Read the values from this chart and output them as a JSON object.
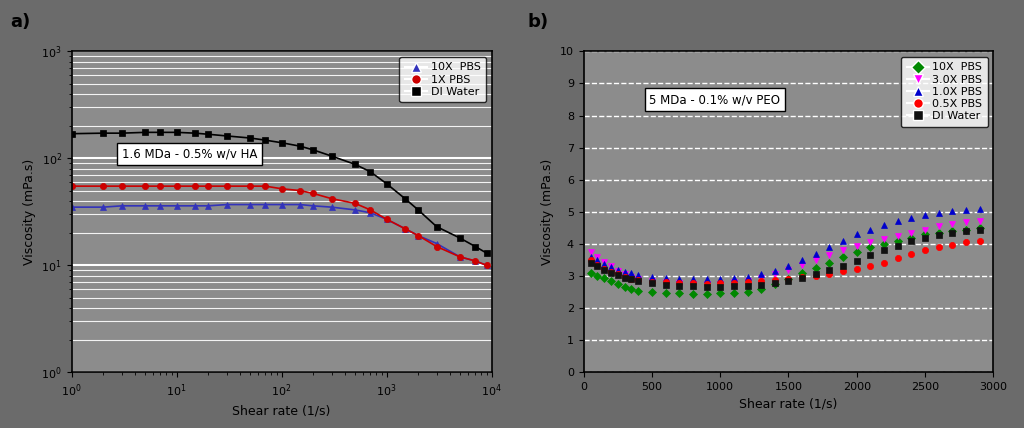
{
  "fig_bg": "#6b6b6b",
  "plot_bg": "#8c8c8c",
  "fig_size": [
    10.24,
    4.28
  ],
  "dpi": 100,
  "panel_a": {
    "label": "a)",
    "xlabel": "Shear rate (1/s)",
    "ylabel": "Viscosity (mPa.s)",
    "xlim": [
      1,
      10000
    ],
    "ylim": [
      1,
      1000
    ],
    "annotation": "1.6 MDa - 0.5% w/v HA",
    "series": [
      {
        "label": "10X  PBS",
        "color": "#3333bb",
        "marker": "^",
        "x": [
          1,
          2,
          3,
          5,
          7,
          10,
          15,
          20,
          30,
          50,
          70,
          100,
          150,
          200,
          300,
          500,
          700,
          1000,
          1500,
          2000,
          3000,
          5000,
          7000,
          9000
        ],
        "y": [
          35,
          35,
          36,
          36,
          36,
          36,
          36,
          36,
          37,
          37,
          37,
          37,
          37,
          36,
          35,
          33,
          31,
          27,
          22,
          19,
          16,
          12,
          11,
          10
        ]
      },
      {
        "label": "1X PBS",
        "color": "#cc0000",
        "marker": "o",
        "x": [
          1,
          2,
          3,
          5,
          7,
          10,
          15,
          20,
          30,
          50,
          70,
          100,
          150,
          200,
          300,
          500,
          700,
          1000,
          1500,
          2000,
          3000,
          5000,
          7000,
          9000
        ],
        "y": [
          55,
          55,
          55,
          55,
          55,
          55,
          55,
          55,
          55,
          55,
          55,
          52,
          50,
          47,
          42,
          38,
          33,
          27,
          22,
          19,
          15,
          12,
          11,
          10
        ]
      },
      {
        "label": "DI Water",
        "color": "#000000",
        "marker": "s",
        "x": [
          1,
          2,
          3,
          5,
          7,
          10,
          15,
          20,
          30,
          50,
          70,
          100,
          150,
          200,
          300,
          500,
          700,
          1000,
          1500,
          2000,
          3000,
          5000,
          7000,
          9000
        ],
        "y": [
          170,
          172,
          172,
          175,
          175,
          175,
          172,
          168,
          162,
          155,
          148,
          140,
          130,
          120,
          105,
          88,
          75,
          58,
          42,
          33,
          23,
          18,
          15,
          13
        ]
      }
    ]
  },
  "panel_b": {
    "label": "b)",
    "xlabel": "Shear rate (1/s)",
    "ylabel": "Viscosity (mPa.s)",
    "xlim": [
      0,
      3000
    ],
    "ylim": [
      0,
      10
    ],
    "yticks": [
      0,
      1,
      2,
      3,
      4,
      5,
      6,
      7,
      8,
      9,
      10
    ],
    "annotation": "5 MDa - 0.1% w/v PEO",
    "series": [
      {
        "label": "10X  PBS",
        "color": "#008800",
        "marker": "D",
        "x": [
          50,
          100,
          150,
          200,
          250,
          300,
          350,
          400,
          500,
          600,
          700,
          800,
          900,
          1000,
          1100,
          1200,
          1300,
          1400,
          1500,
          1600,
          1700,
          1800,
          1900,
          2000,
          2100,
          2200,
          2300,
          2400,
          2500,
          2600,
          2700,
          2800,
          2900
        ],
        "y": [
          3.1,
          3.0,
          2.95,
          2.85,
          2.75,
          2.65,
          2.6,
          2.55,
          2.5,
          2.48,
          2.46,
          2.45,
          2.45,
          2.46,
          2.48,
          2.5,
          2.6,
          2.75,
          2.9,
          3.1,
          3.25,
          3.4,
          3.6,
          3.75,
          3.9,
          4.0,
          4.1,
          4.2,
          4.3,
          4.35,
          4.4,
          4.45,
          4.5
        ]
      },
      {
        "label": "3.0X PBS",
        "color": "#ff00ff",
        "marker": "v",
        "x": [
          50,
          100,
          150,
          200,
          250,
          300,
          350,
          400,
          500,
          600,
          700,
          800,
          900,
          1000,
          1100,
          1200,
          1300,
          1400,
          1500,
          1600,
          1700,
          1800,
          1900,
          2000,
          2100,
          2200,
          2300,
          2400,
          2500,
          2600,
          2700,
          2800,
          2900
        ],
        "y": [
          3.75,
          3.6,
          3.45,
          3.3,
          3.15,
          3.05,
          2.98,
          2.92,
          2.85,
          2.8,
          2.77,
          2.75,
          2.75,
          2.76,
          2.8,
          2.85,
          2.95,
          3.05,
          3.2,
          3.35,
          3.5,
          3.65,
          3.8,
          3.95,
          4.05,
          4.15,
          4.25,
          4.35,
          4.45,
          4.55,
          4.62,
          4.68,
          4.72
        ]
      },
      {
        "label": "1.0X PBS",
        "color": "#0000cc",
        "marker": "^",
        "x": [
          50,
          100,
          150,
          200,
          250,
          300,
          350,
          400,
          500,
          600,
          700,
          800,
          900,
          1000,
          1100,
          1200,
          1300,
          1400,
          1500,
          1600,
          1700,
          1800,
          1900,
          2000,
          2100,
          2200,
          2300,
          2400,
          2500,
          2600,
          2700,
          2800,
          2900
        ],
        "y": [
          3.6,
          3.5,
          3.38,
          3.28,
          3.2,
          3.12,
          3.08,
          3.03,
          2.97,
          2.93,
          2.91,
          2.9,
          2.9,
          2.91,
          2.94,
          2.98,
          3.05,
          3.15,
          3.3,
          3.5,
          3.7,
          3.9,
          4.1,
          4.3,
          4.45,
          4.6,
          4.72,
          4.82,
          4.9,
          4.97,
          5.02,
          5.07,
          5.1
        ]
      },
      {
        "label": "0.5X PBS",
        "color": "#ff0000",
        "marker": "o",
        "x": [
          50,
          100,
          150,
          200,
          250,
          300,
          350,
          400,
          500,
          600,
          700,
          800,
          900,
          1000,
          1100,
          1200,
          1300,
          1400,
          1500,
          1600,
          1700,
          1800,
          1900,
          2000,
          2100,
          2200,
          2300,
          2400,
          2500,
          2600,
          2700,
          2800,
          2900
        ],
        "y": [
          3.5,
          3.35,
          3.22,
          3.12,
          3.05,
          2.97,
          2.92,
          2.88,
          2.83,
          2.8,
          2.78,
          2.77,
          2.76,
          2.77,
          2.79,
          2.82,
          2.85,
          2.88,
          2.92,
          2.96,
          3.0,
          3.07,
          3.15,
          3.23,
          3.32,
          3.42,
          3.55,
          3.68,
          3.8,
          3.9,
          3.98,
          4.05,
          4.1
        ]
      },
      {
        "label": "DI Water",
        "color": "#111111",
        "marker": "s",
        "x": [
          50,
          100,
          150,
          200,
          250,
          300,
          350,
          400,
          500,
          600,
          700,
          800,
          900,
          1000,
          1100,
          1200,
          1300,
          1400,
          1500,
          1600,
          1700,
          1800,
          1900,
          2000,
          2100,
          2200,
          2300,
          2400,
          2500,
          2600,
          2700,
          2800,
          2900
        ],
        "y": [
          3.4,
          3.3,
          3.2,
          3.1,
          3.02,
          2.95,
          2.9,
          2.85,
          2.78,
          2.73,
          2.7,
          2.68,
          2.67,
          2.67,
          2.68,
          2.7,
          2.73,
          2.78,
          2.85,
          2.95,
          3.05,
          3.18,
          3.32,
          3.48,
          3.65,
          3.8,
          3.95,
          4.08,
          4.2,
          4.28,
          4.35,
          4.4,
          4.43
        ]
      }
    ]
  }
}
